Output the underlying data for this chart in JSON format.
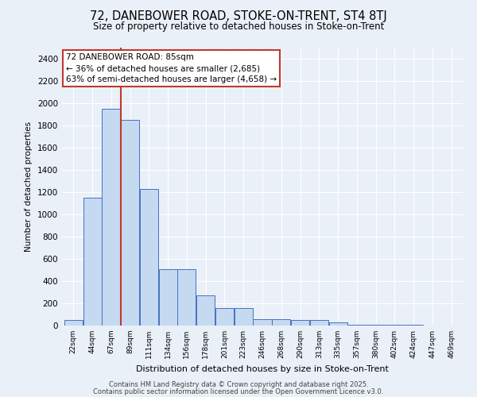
{
  "title1": "72, DANEBOWER ROAD, STOKE-ON-TRENT, ST4 8TJ",
  "title2": "Size of property relative to detached houses in Stoke-on-Trent",
  "xlabel": "Distribution of detached houses by size in Stoke-on-Trent",
  "ylabel": "Number of detached properties",
  "categories": [
    "22sqm",
    "44sqm",
    "67sqm",
    "89sqm",
    "111sqm",
    "134sqm",
    "156sqm",
    "178sqm",
    "201sqm",
    "223sqm",
    "246sqm",
    "268sqm",
    "290sqm",
    "313sqm",
    "335sqm",
    "357sqm",
    "380sqm",
    "402sqm",
    "424sqm",
    "447sqm",
    "469sqm"
  ],
  "values": [
    50,
    1150,
    1950,
    1850,
    1230,
    510,
    510,
    270,
    160,
    160,
    55,
    55,
    50,
    50,
    30,
    10,
    10,
    5,
    5,
    2,
    2
  ],
  "bar_color": "#c5d9f1",
  "bar_edge_color": "#4472c4",
  "vline_x": 2.5,
  "vline_color": "#c0392b",
  "annotation_title": "72 DANEBOWER ROAD: 85sqm",
  "annotation_line1": "← 36% of detached houses are smaller (2,685)",
  "annotation_line2": "63% of semi-detached houses are larger (4,658) →",
  "annotation_box_color": "#c0392b",
  "background_color": "#eaf0f8",
  "grid_color": "#ffffff",
  "footer1": "Contains HM Land Registry data © Crown copyright and database right 2025.",
  "footer2": "Contains public sector information licensed under the Open Government Licence v3.0.",
  "ylim": [
    0,
    2500
  ],
  "yticks": [
    0,
    200,
    400,
    600,
    800,
    1000,
    1200,
    1400,
    1600,
    1800,
    2000,
    2200,
    2400
  ]
}
